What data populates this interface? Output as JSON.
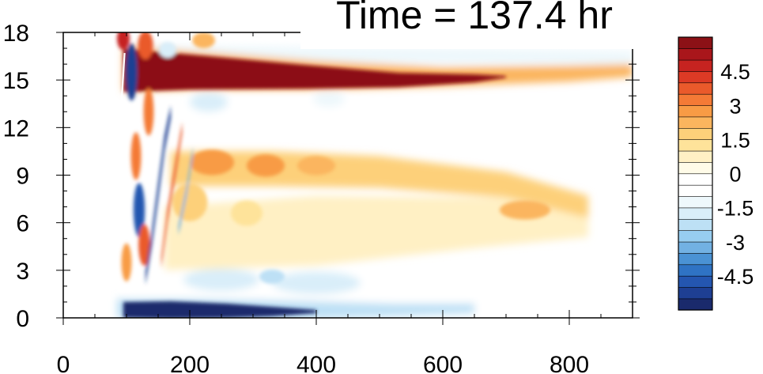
{
  "chart_data": {
    "type": "heatmap",
    "title": "Time = 137.4 hr",
    "xlabel": "",
    "ylabel": "",
    "xlim": [
      0,
      900
    ],
    "ylim": [
      0,
      18
    ],
    "x_ticks": [
      0,
      200,
      400,
      600,
      800
    ],
    "y_ticks": [
      0,
      3,
      6,
      9,
      12,
      15,
      18
    ],
    "grid": false,
    "colorbar": {
      "placement": "right",
      "levels": [
        -6,
        -5.5,
        -5,
        -4.5,
        -4,
        -3.5,
        -3,
        -2.5,
        -2,
        -1.5,
        -1,
        -0.5,
        0,
        0.5,
        1,
        1.5,
        2,
        2.5,
        3,
        3.5,
        4,
        4.5,
        5,
        5.5,
        6
      ],
      "tick_labels": [
        "4.5",
        "3",
        "1.5",
        "0",
        "-1.5",
        "-3",
        "-4.5"
      ],
      "tick_values": [
        4.5,
        3,
        1.5,
        0,
        -1.5,
        -3,
        -4.5
      ],
      "colors": [
        "#1a2a6c",
        "#1e3f93",
        "#2456b0",
        "#2f73c4",
        "#4a92d4",
        "#72b1e3",
        "#97cdf0",
        "#bde0f5",
        "#d9eef9",
        "#eef8fc",
        "#ffffff",
        "#ffffff",
        "#fffbe8",
        "#fff0c4",
        "#fee39a",
        "#fdd07a",
        "#fbb55e",
        "#f89b45",
        "#f47a36",
        "#ea5a2b",
        "#dc3a25",
        "#c62320",
        "#a9161b",
        "#8c1116"
      ]
    },
    "features": [
      {
        "name": "upper positive band",
        "x": [
          95,
          900
        ],
        "y_center": 15.3,
        "value": 5.5
      },
      {
        "name": "upper negative layer",
        "x": [
          120,
          900
        ],
        "y_center": 16.5,
        "value": -1.5
      },
      {
        "name": "mid positive band",
        "x": [
          170,
          800
        ],
        "y_center": 9.3,
        "value": 2
      },
      {
        "name": "surface negative layer",
        "x": [
          90,
          600
        ],
        "y_center": 0.4,
        "value": -5
      }
    ]
  }
}
